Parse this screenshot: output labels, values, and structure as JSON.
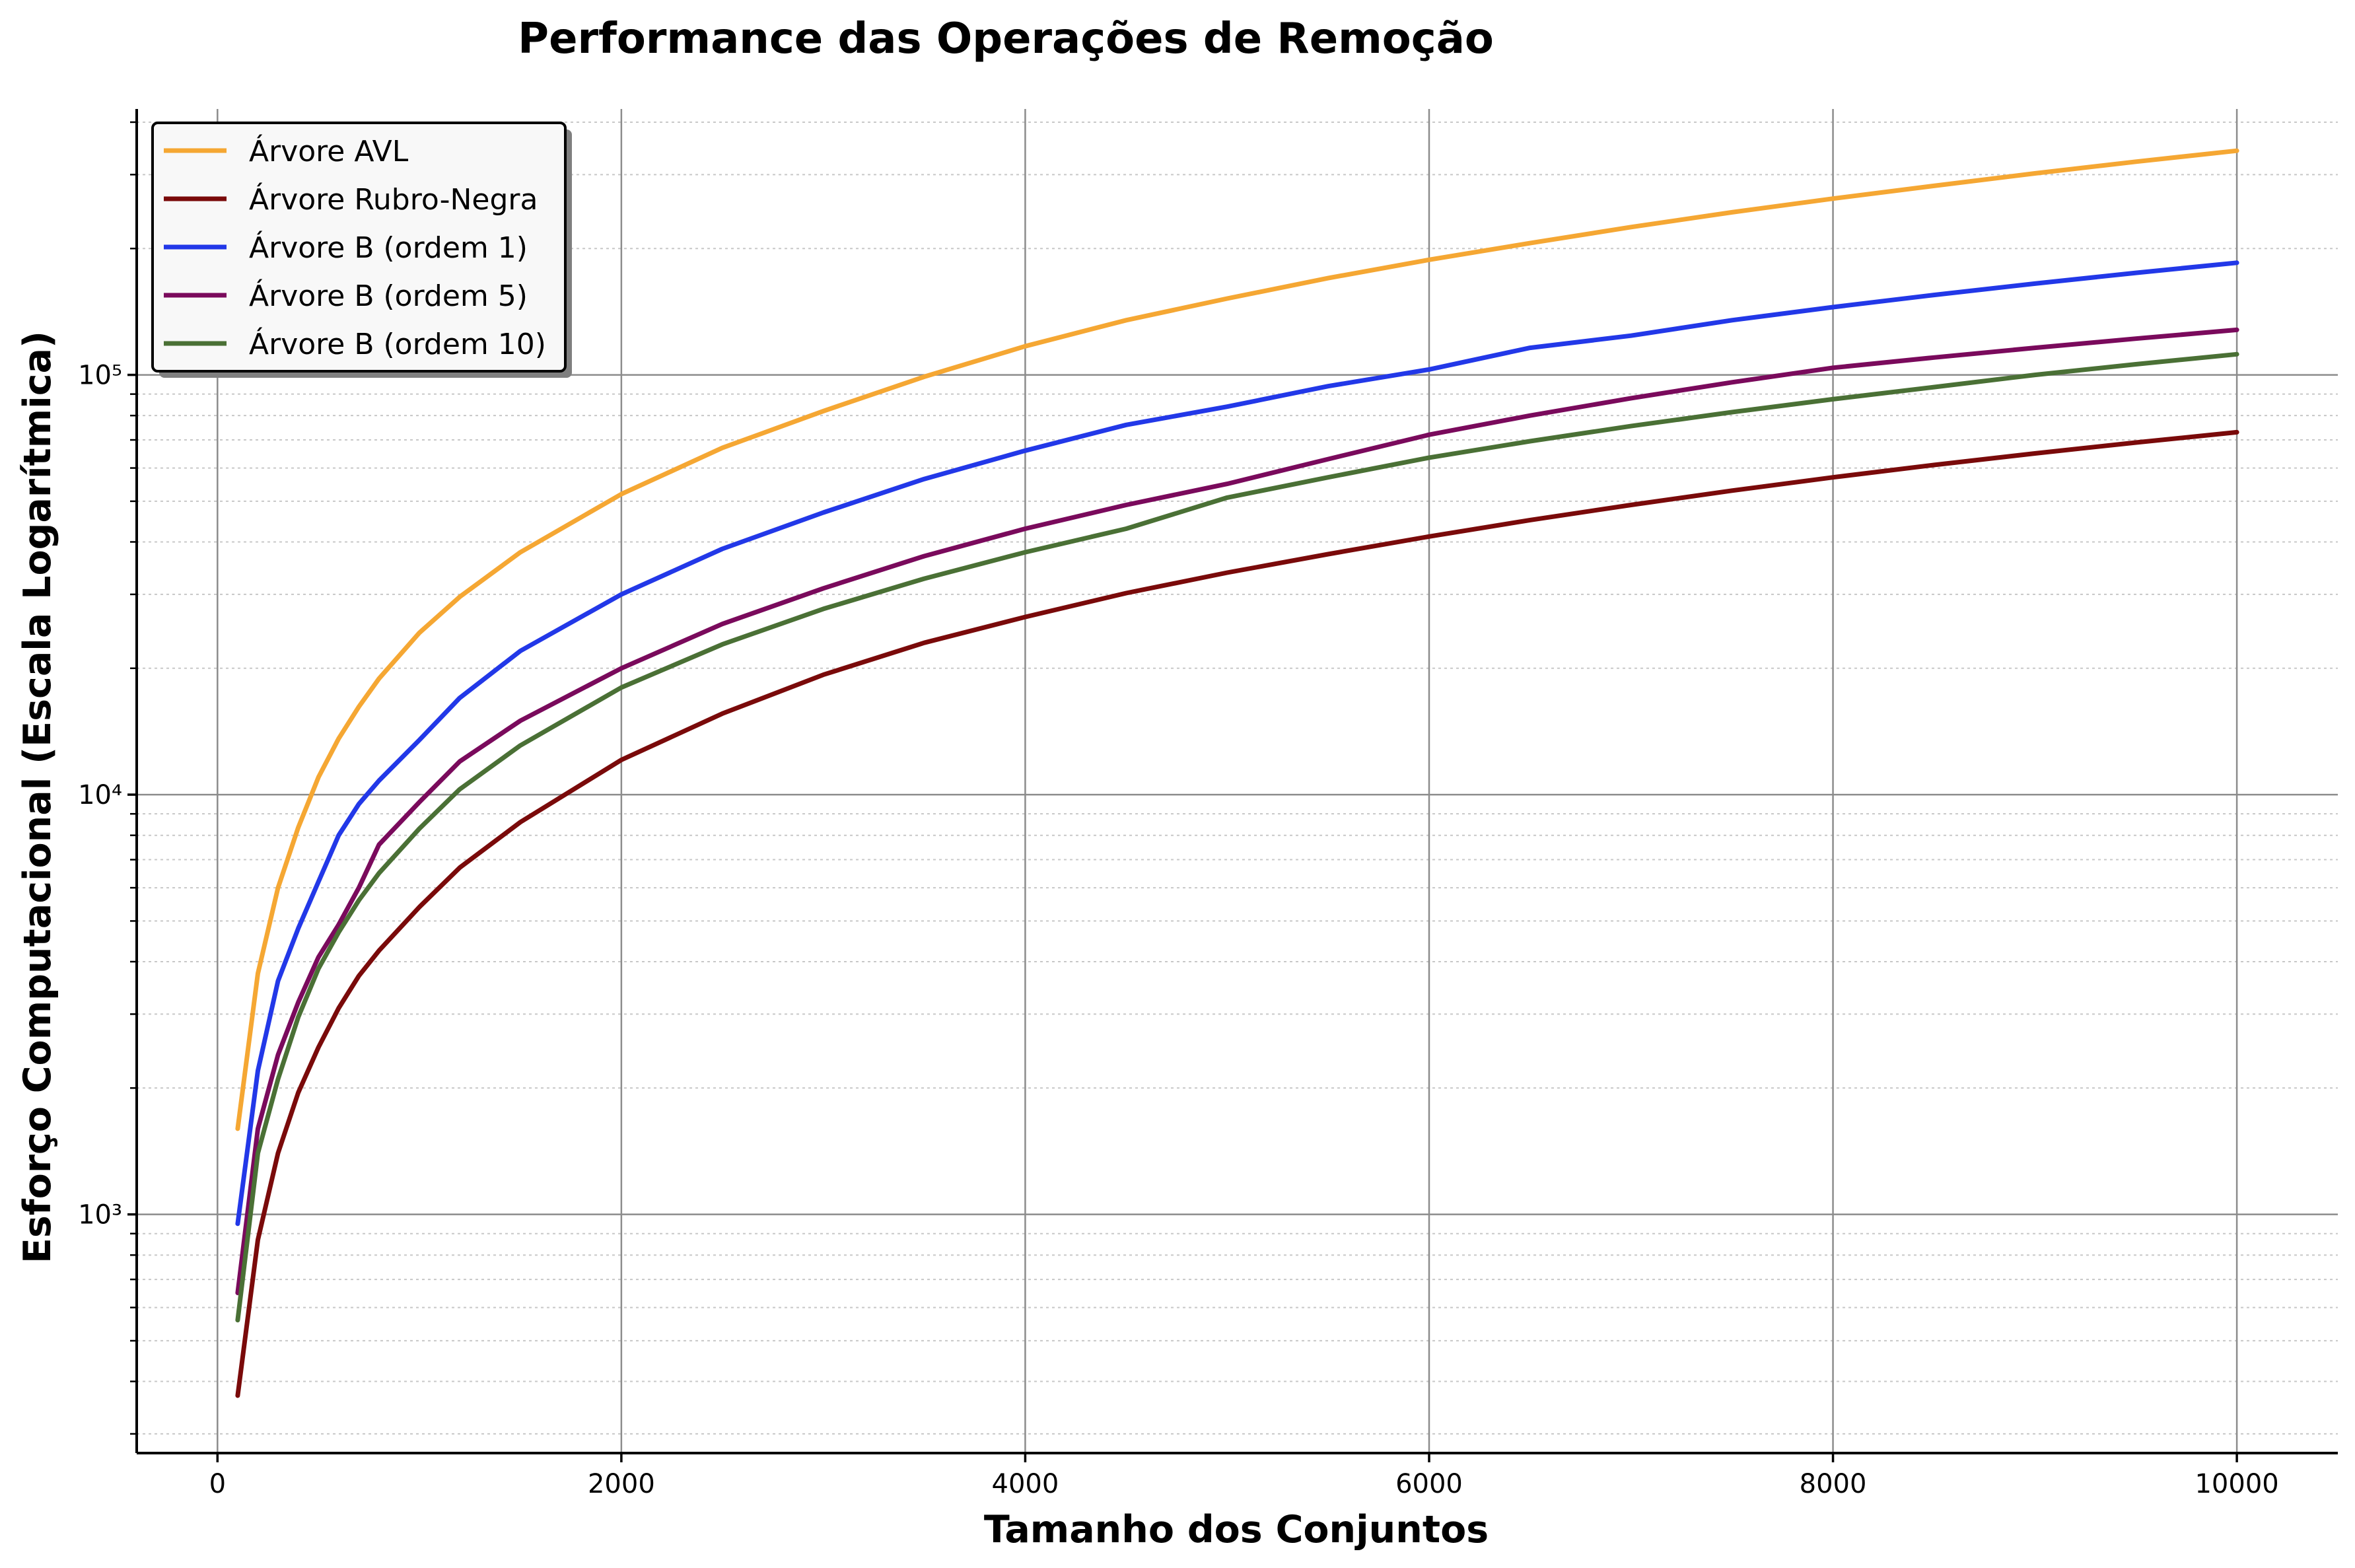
{
  "chart_data": {
    "type": "line",
    "title": "Performance das Operações de Remoção",
    "xlabel": "Tamanho dos Conjuntos",
    "ylabel": "Esforço Computacional (Escala Logarítmica)",
    "xlim": [
      -400,
      10500
    ],
    "ylim": [
      270,
      430000
    ],
    "yscale": "log",
    "grid": true,
    "legend_position": "top-left",
    "x_ticks": [
      0,
      2000,
      4000,
      6000,
      8000,
      10000
    ],
    "x_tick_labels": [
      "0",
      "2000",
      "4000",
      "6000",
      "8000",
      "10000"
    ],
    "y_ticks": [
      1000,
      10000,
      100000
    ],
    "y_tick_labels": [
      "10³",
      "10⁴",
      "10⁵"
    ],
    "x": [
      100,
      200,
      300,
      400,
      500,
      600,
      700,
      800,
      1000,
      1200,
      1500,
      2000,
      2500,
      3000,
      3500,
      4000,
      4500,
      5000,
      5500,
      6000,
      6500,
      7000,
      7500,
      8000,
      8500,
      9000,
      9500,
      10000
    ],
    "series": [
      {
        "name": "Árvore AVL",
        "color": "#f5a733",
        "values": [
          1600,
          3750,
          6000,
          8350,
          11000,
          13600,
          16200,
          18900,
          24300,
          29600,
          37800,
          52000,
          67000,
          82000,
          99000,
          117000,
          135000,
          152000,
          170000,
          188000,
          206000,
          225000,
          244000,
          263000,
          282000,
          302000,
          322000,
          342000
        ]
      },
      {
        "name": "Árvore Rubro-Negra",
        "color": "#7a0a0a",
        "values": [
          370,
          870,
          1400,
          1950,
          2500,
          3100,
          3700,
          4250,
          5400,
          6700,
          8600,
          12100,
          15600,
          19300,
          23000,
          26500,
          30200,
          33800,
          37400,
          41200,
          45100,
          49000,
          53000,
          57000,
          61000,
          65000,
          69000,
          73000
        ]
      },
      {
        "name": "Árvore B (ordem 1)",
        "color": "#2238e8",
        "values": [
          950,
          2200,
          3600,
          4800,
          6200,
          8000,
          9500,
          10800,
          13500,
          17000,
          22000,
          30000,
          38500,
          47000,
          56500,
          66000,
          76000,
          84000,
          94000,
          103000,
          116000,
          124000,
          135000,
          145000,
          155000,
          165000,
          175000,
          185000
        ]
      },
      {
        "name": "Árvore B (ordem 5)",
        "color": "#7a0a5c",
        "values": [
          650,
          1600,
          2400,
          3200,
          4100,
          4900,
          6000,
          7600,
          9600,
          12000,
          15000,
          20000,
          25500,
          31000,
          37000,
          43000,
          49000,
          55000,
          63000,
          72000,
          80000,
          88000,
          96000,
          104000,
          110000,
          116000,
          122000,
          128000
        ]
      },
      {
        "name": "Árvore B (ordem 10)",
        "color": "#4a7035",
        "values": [
          560,
          1400,
          2100,
          2950,
          3850,
          4700,
          5600,
          6500,
          8300,
          10300,
          13100,
          18000,
          22800,
          27700,
          32700,
          37800,
          43000,
          51000,
          57000,
          63500,
          69500,
          75500,
          81500,
          87500,
          93500,
          100000,
          106000,
          112000
        ]
      }
    ]
  }
}
